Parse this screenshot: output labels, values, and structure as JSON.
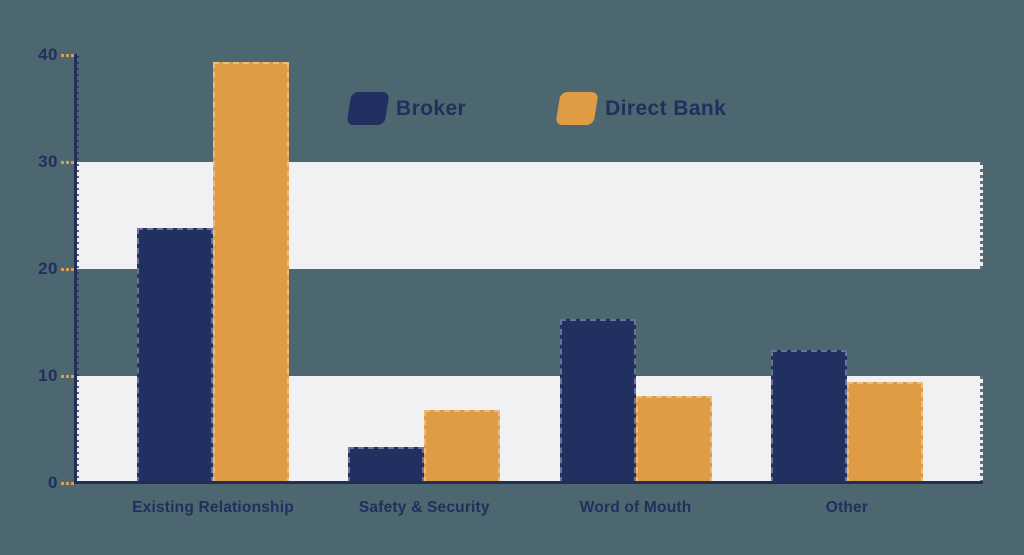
{
  "chart_data": {
    "type": "bar",
    "title": "",
    "categories": [
      "Existing Relationship",
      "Safety & Security",
      "Word of Mouth",
      "Other"
    ],
    "series": [
      {
        "name": "Broker",
        "color": "#213060",
        "values": [
          23.8,
          3.4,
          15.3,
          12.4
        ]
      },
      {
        "name": "Direct Bank",
        "color": "#e09c44",
        "values": [
          39.3,
          6.8,
          8.1,
          9.4
        ]
      }
    ],
    "xlabel": "",
    "ylabel": "",
    "y_ticks": [
      0,
      10,
      20,
      30,
      40
    ],
    "ylim": [
      0,
      40
    ],
    "band_ranges": [
      [
        0,
        10
      ],
      [
        20,
        30
      ]
    ],
    "grid": "alternating horizontal highlight bands at 0-10 and 20-30",
    "legend_position": "top-center",
    "colors": {
      "background": "#4c676f",
      "band": "#f1f1f4",
      "axis": "#232e57",
      "tick_dash": "#e09c44",
      "text": "#222f5d"
    }
  }
}
